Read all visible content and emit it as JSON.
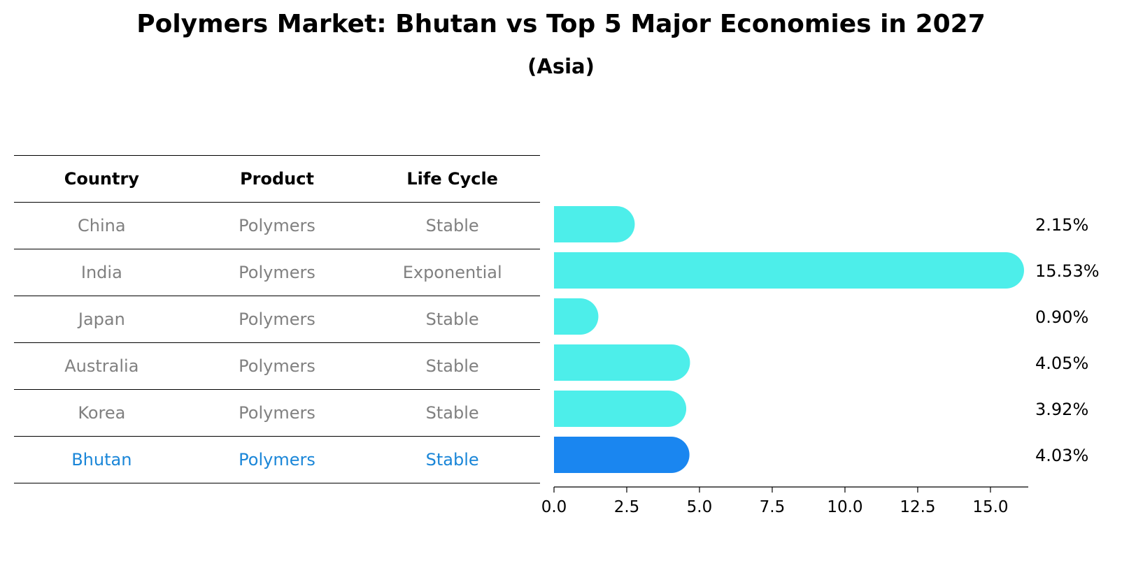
{
  "title": "Polymers Market: Bhutan vs Top 5 Major Economies in 2027",
  "subtitle": "(Asia)",
  "table": {
    "headers": [
      "Country",
      "Product",
      "Life Cycle"
    ],
    "rows": [
      [
        "China",
        "Polymers",
        "Stable"
      ],
      [
        "India",
        "Polymers",
        "Exponential"
      ],
      [
        "Japan",
        "Polymers",
        "Stable"
      ],
      [
        "Australia",
        "Polymers",
        "Stable"
      ],
      [
        "Korea",
        "Polymers",
        "Stable"
      ],
      [
        "Bhutan",
        "Polymers",
        "Stable"
      ]
    ]
  },
  "colors": {
    "bar": "#4deeea",
    "highlight": "#1a86f0",
    "highlight_text": "#1a86d8",
    "muted_text": "#808080"
  },
  "chart_data": {
    "type": "bar",
    "orientation": "horizontal",
    "categories": [
      "China",
      "India",
      "Japan",
      "Australia",
      "Korea",
      "Bhutan"
    ],
    "values": [
      2.15,
      15.53,
      0.9,
      4.05,
      3.92,
      4.03
    ],
    "value_labels": [
      "2.15%",
      "15.53%",
      "0.90%",
      "4.05%",
      "3.92%",
      "4.03%"
    ],
    "highlight": "Bhutan",
    "xlim": [
      0,
      16.3
    ],
    "xticks": [
      0.0,
      2.5,
      5.0,
      7.5,
      10.0,
      12.5,
      15.0
    ],
    "xtick_labels": [
      "0.0",
      "2.5",
      "5.0",
      "7.5",
      "10.0",
      "12.5",
      "15.0"
    ],
    "xlabel": "",
    "ylabel": ""
  }
}
